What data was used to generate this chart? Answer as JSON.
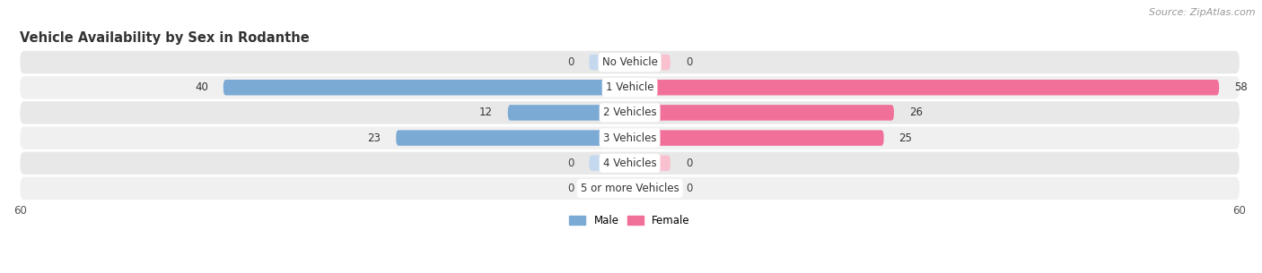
{
  "title": "Vehicle Availability by Sex in Rodanthe",
  "source": "Source: ZipAtlas.com",
  "categories": [
    "No Vehicle",
    "1 Vehicle",
    "2 Vehicles",
    "3 Vehicles",
    "4 Vehicles",
    "5 or more Vehicles"
  ],
  "male_values": [
    0,
    40,
    12,
    23,
    0,
    0
  ],
  "female_values": [
    0,
    58,
    26,
    25,
    0,
    0
  ],
  "male_color": "#7baad4",
  "female_color": "#f07099",
  "male_color_zero": "#c5d9ee",
  "female_color_zero": "#f9c0d0",
  "row_bg_color": "#e8e8e8",
  "row_bg_color_alt": "#f0f0f0",
  "xlim": 60,
  "bar_height": 0.62,
  "zero_stub": 4,
  "legend_male": "Male",
  "legend_female": "Female",
  "title_fontsize": 10.5,
  "source_fontsize": 8,
  "value_fontsize": 8.5,
  "category_fontsize": 8.5,
  "tick_fontsize": 8.5
}
